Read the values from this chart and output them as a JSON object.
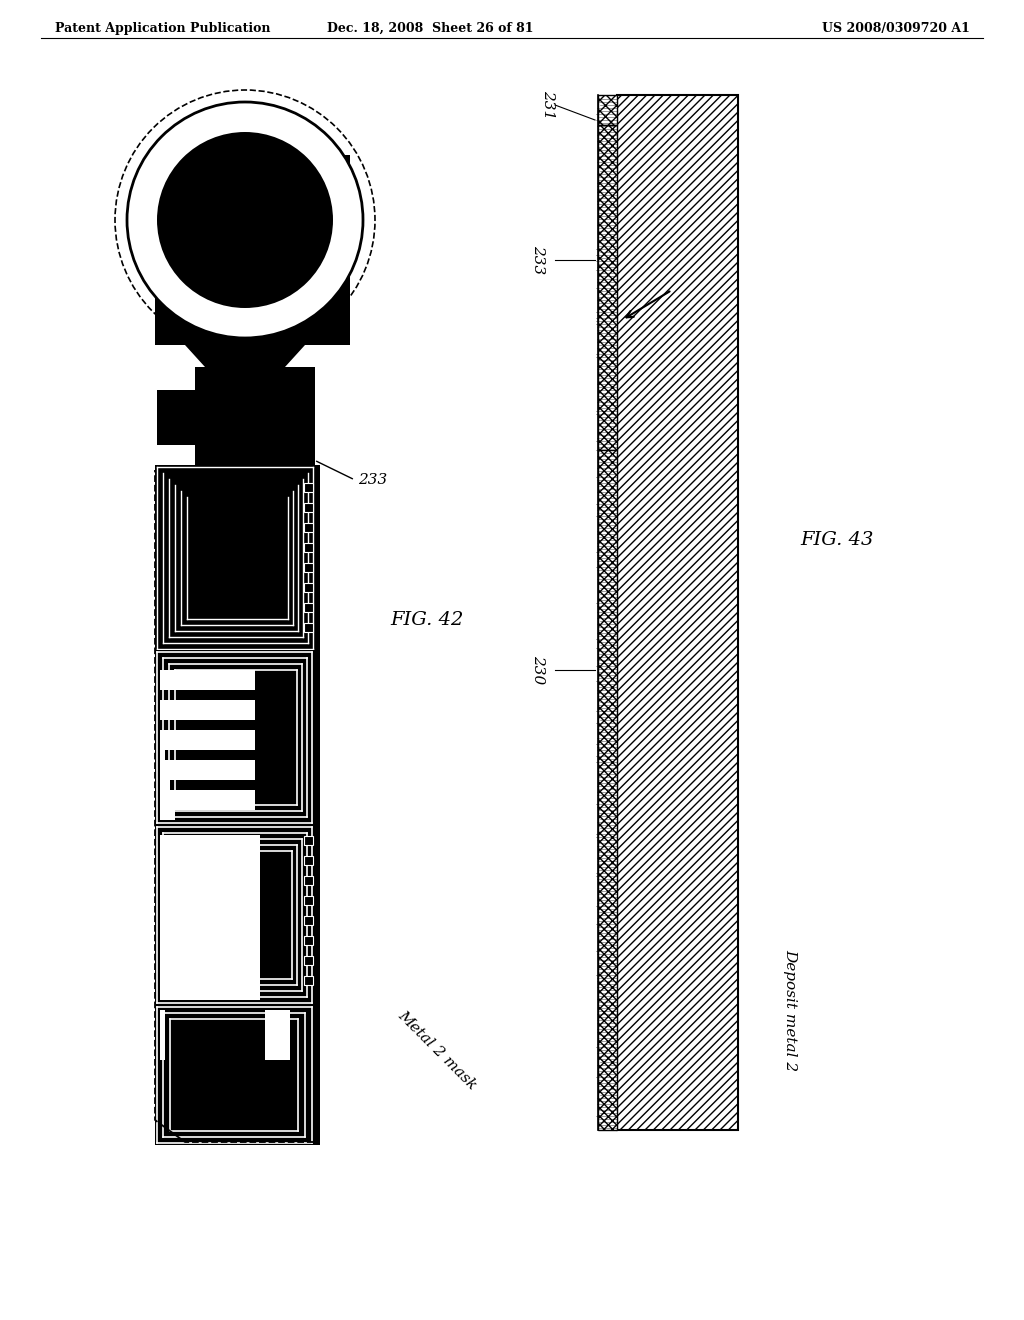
{
  "header_left": "Patent Application Publication",
  "header_center": "Dec. 18, 2008  Sheet 26 of 81",
  "header_right": "US 2008/0309720 A1",
  "fig42_label": "FIG. 42",
  "fig43_label": "FIG. 43",
  "label_233_left": "233",
  "label_233_right": "233",
  "label_231": "231",
  "label_230": "230",
  "caption_left": "Metal 2 mask",
  "caption_right": "Deposit metal 2",
  "bg_color": "#ffffff",
  "black": "#000000",
  "white": "#ffffff"
}
